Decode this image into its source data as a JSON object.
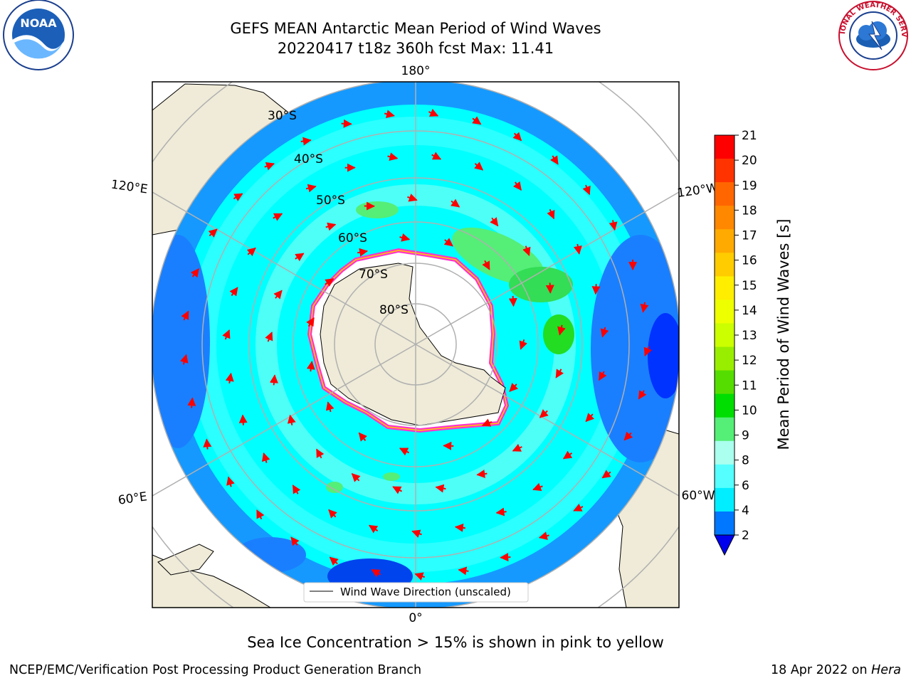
{
  "header": {
    "title_line1": "GEFS MEAN Antarctic Mean Period of Wind Waves",
    "title_line2": "20220417 t18z 360h fcst   Max: 11.41"
  },
  "logos": {
    "left": "NOAA",
    "right": "NATIONAL WEATHER SERVICE"
  },
  "map": {
    "projection": "south-polar-stereographic",
    "meridian_labels": {
      "top": "180°",
      "bottom": "0°",
      "left_upper": "120°E",
      "left_lower": "60°E",
      "right_upper": "120°W",
      "right_lower": "60°W"
    },
    "parallel_labels": [
      "30°S",
      "40°S",
      "50°S",
      "60°S",
      "70°S",
      "80°S"
    ],
    "legend_label": "Wind Wave Direction (unscaled)",
    "colors": {
      "land": "#efebd8",
      "ice_edge": "#ff33cc",
      "arrow": "#ff0000",
      "grid": "#b0b0b0"
    }
  },
  "colorbar": {
    "label": "Mean Period of Wind Waves [s]",
    "ticks": [
      "21",
      "20",
      "19",
      "18",
      "17",
      "16",
      "15",
      "14",
      "13",
      "12",
      "11",
      "10",
      "9",
      "8",
      "6",
      "4",
      "2"
    ],
    "colors": [
      "#ff0000",
      "#ff3300",
      "#ff6600",
      "#ff8800",
      "#ffaa00",
      "#ffcc00",
      "#ffee00",
      "#eeff00",
      "#ccff00",
      "#99ee00",
      "#55dd00",
      "#00dd00",
      "#55ee77",
      "#aaffee",
      "#55ffff",
      "#00eeff",
      "#0077ff"
    ],
    "below_color": "#0000ee"
  },
  "footer": {
    "note": "Sea Ice Concentration > 15% is shown in pink to yellow",
    "credit": "NCEP/EMC/Verification Post Processing Product Generation Branch",
    "date_prefix": "18 Apr 2022 on ",
    "date_machine": "Hera"
  }
}
